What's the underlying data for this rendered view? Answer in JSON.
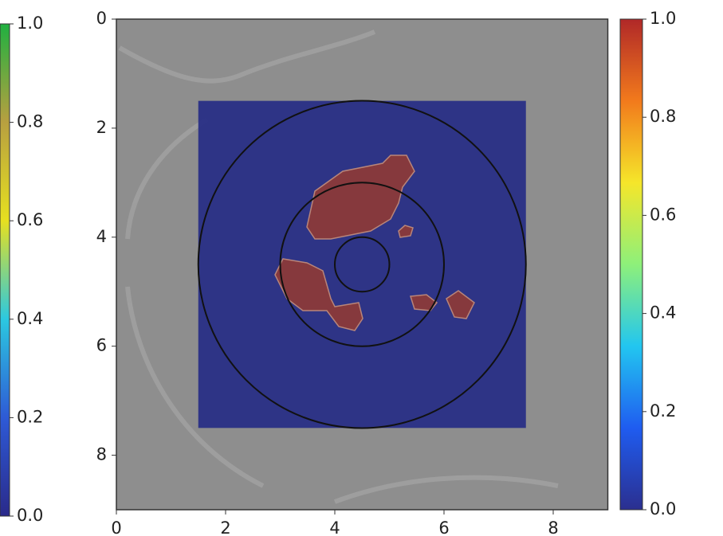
{
  "chart_data": {
    "type": "image",
    "xlim": [
      0,
      9
    ],
    "ylim": [
      9,
      0
    ],
    "xticks": [
      0,
      2,
      4,
      6,
      8
    ],
    "yticks": [
      0,
      2,
      4,
      6,
      8
    ],
    "background_color": "#8e8e8e",
    "overlay": {
      "color": "#262d86",
      "xlim": [
        1.5,
        7.5
      ],
      "ylim": [
        1.5,
        7.5
      ]
    },
    "circles": {
      "center": [
        4.5,
        4.5
      ],
      "radii": [
        0.5,
        1.5,
        3
      ],
      "color": "#111111"
    },
    "colorbars": [
      {
        "side": "left",
        "lim": [
          0,
          1
        ],
        "ticks": [
          {
            "value": 0,
            "label": "0.0"
          },
          0.2,
          0.4,
          0.6,
          0.8,
          {
            "value": 1,
            "label": "1.0"
          }
        ],
        "colors": [
          "#2a2a8a",
          "#2e5ad6",
          "#2cc8e0",
          "#e6e020",
          "#b8a040",
          "#20b040"
        ]
      },
      {
        "side": "right",
        "lim": [
          0,
          1
        ],
        "ticks": [
          {
            "value": 0,
            "label": "0.0"
          },
          0.2,
          0.4,
          0.6,
          0.8,
          {
            "value": 1,
            "label": "1.0"
          }
        ],
        "colors": [
          "#2b2f8f",
          "#1f5cf0",
          "#22c6f0",
          "#8ef07a",
          "#f5e62a",
          "#f27a1c",
          "#b02828"
        ]
      }
    ]
  }
}
